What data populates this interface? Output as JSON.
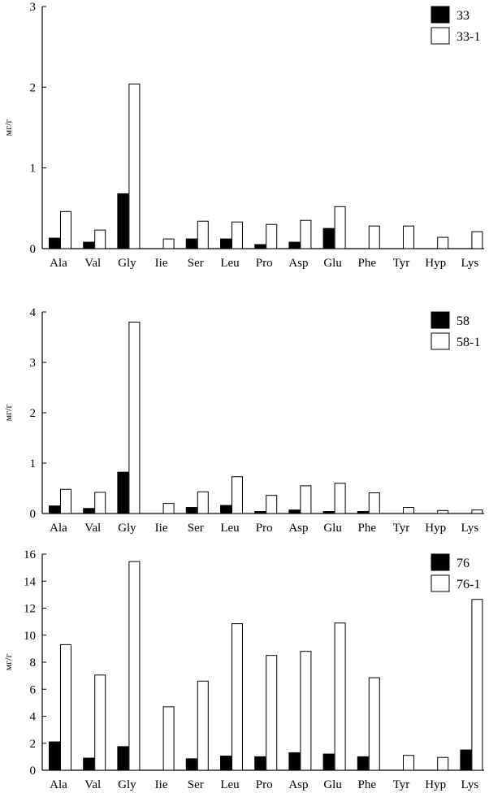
{
  "chart_data": [
    {
      "type": "bar",
      "categories": [
        "Ala",
        "Val",
        "Gly",
        "Iie",
        "Ser",
        "Leu",
        "Pro",
        "Asp",
        "Glu",
        "Phe",
        "Tyr",
        "Hyp",
        "Lys"
      ],
      "ylabel": "мг/г",
      "ylim": [
        0,
        3
      ],
      "yticks": [
        0,
        1,
        2,
        3
      ],
      "legend": "top-right",
      "series": [
        {
          "name": "33",
          "color": "#000000",
          "values": [
            0.13,
            0.08,
            0.68,
            0,
            0.12,
            0.12,
            0.05,
            0.08,
            0.25,
            0,
            0,
            0,
            0
          ]
        },
        {
          "name": "33-1",
          "color": "#ffffff",
          "values": [
            0.46,
            0.23,
            2.04,
            0.12,
            0.34,
            0.33,
            0.3,
            0.35,
            0.52,
            0.28,
            0.28,
            0.14,
            0.21
          ]
        }
      ]
    },
    {
      "type": "bar",
      "categories": [
        "Ala",
        "Val",
        "Gly",
        "Iie",
        "Ser",
        "Leu",
        "Pro",
        "Asp",
        "Glu",
        "Phe",
        "Tyr",
        "Hyp",
        "Lys"
      ],
      "ylabel": "мг/г",
      "ylim": [
        0,
        4
      ],
      "yticks": [
        0,
        1,
        2,
        3,
        4
      ],
      "legend": "top-right",
      "series": [
        {
          "name": "58",
          "color": "#000000",
          "values": [
            0.15,
            0.1,
            0.82,
            0,
            0.12,
            0.16,
            0.04,
            0.07,
            0.04,
            0.04,
            0,
            0,
            0
          ]
        },
        {
          "name": "58-1",
          "color": "#ffffff",
          "values": [
            0.48,
            0.42,
            3.8,
            0.2,
            0.43,
            0.73,
            0.36,
            0.55,
            0.6,
            0.41,
            0.12,
            0.06,
            0.07
          ]
        }
      ]
    },
    {
      "type": "bar",
      "categories": [
        "Ala",
        "Val",
        "Gly",
        "Iie",
        "Ser",
        "Leu",
        "Pro",
        "Asp",
        "Glu",
        "Phe",
        "Tyr",
        "Hyp",
        "Lys"
      ],
      "ylabel": "мг/г",
      "ylim": [
        0,
        16
      ],
      "yticks": [
        0,
        2,
        4,
        6,
        8,
        10,
        12,
        14,
        16
      ],
      "legend": "top-right",
      "series": [
        {
          "name": "76",
          "color": "#000000",
          "values": [
            2.1,
            0.9,
            1.75,
            0,
            0.85,
            1.05,
            1.0,
            1.3,
            1.2,
            1.0,
            0,
            0,
            1.5
          ]
        },
        {
          "name": "76-1",
          "color": "#ffffff",
          "values": [
            9.3,
            7.05,
            15.45,
            4.7,
            6.6,
            10.85,
            8.5,
            8.8,
            10.9,
            6.85,
            1.1,
            0.95,
            12.65
          ]
        }
      ]
    }
  ]
}
